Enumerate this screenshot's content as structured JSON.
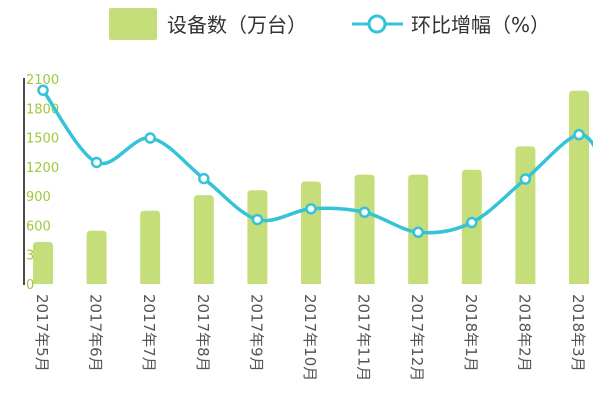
{
  "legend": {
    "bar_label": "设备数（万台）",
    "line_label": "环比增幅（%）"
  },
  "colors": {
    "bar": "#c5de7a",
    "line": "#35c3d9",
    "axis": "#4a4a4a",
    "ytick": "#9cc93b"
  },
  "chart_data": {
    "type": "bar",
    "categories": [
      "2017年5月",
      "2017年6月",
      "2017年7月",
      "2017年8月",
      "2017年9月",
      "2017年10月",
      "2017年11月",
      "2017年12月",
      "2018年1月",
      "2018年2月",
      "2018年3月"
    ],
    "y_ticks": [
      "0",
      "300",
      "600",
      "900",
      "1200",
      "1500",
      "1800",
      "2100"
    ],
    "ylim": [
      0,
      2100
    ],
    "series": [
      {
        "name": "设备数（万台）",
        "type": "bar",
        "values": [
          430,
          545,
          750,
          910,
          960,
          1050,
          1120,
          1120,
          1170,
          1410,
          1980
        ]
      },
      {
        "name": "环比增幅（%）",
        "type": "line",
        "smooth": true,
        "values": [
          1985,
          1245,
          1495,
          1080,
          660,
          770,
          735,
          530,
          630,
          1075,
          1530
        ],
        "trailing_value": 1200
      }
    ],
    "grid": false,
    "legend_position": "top"
  }
}
